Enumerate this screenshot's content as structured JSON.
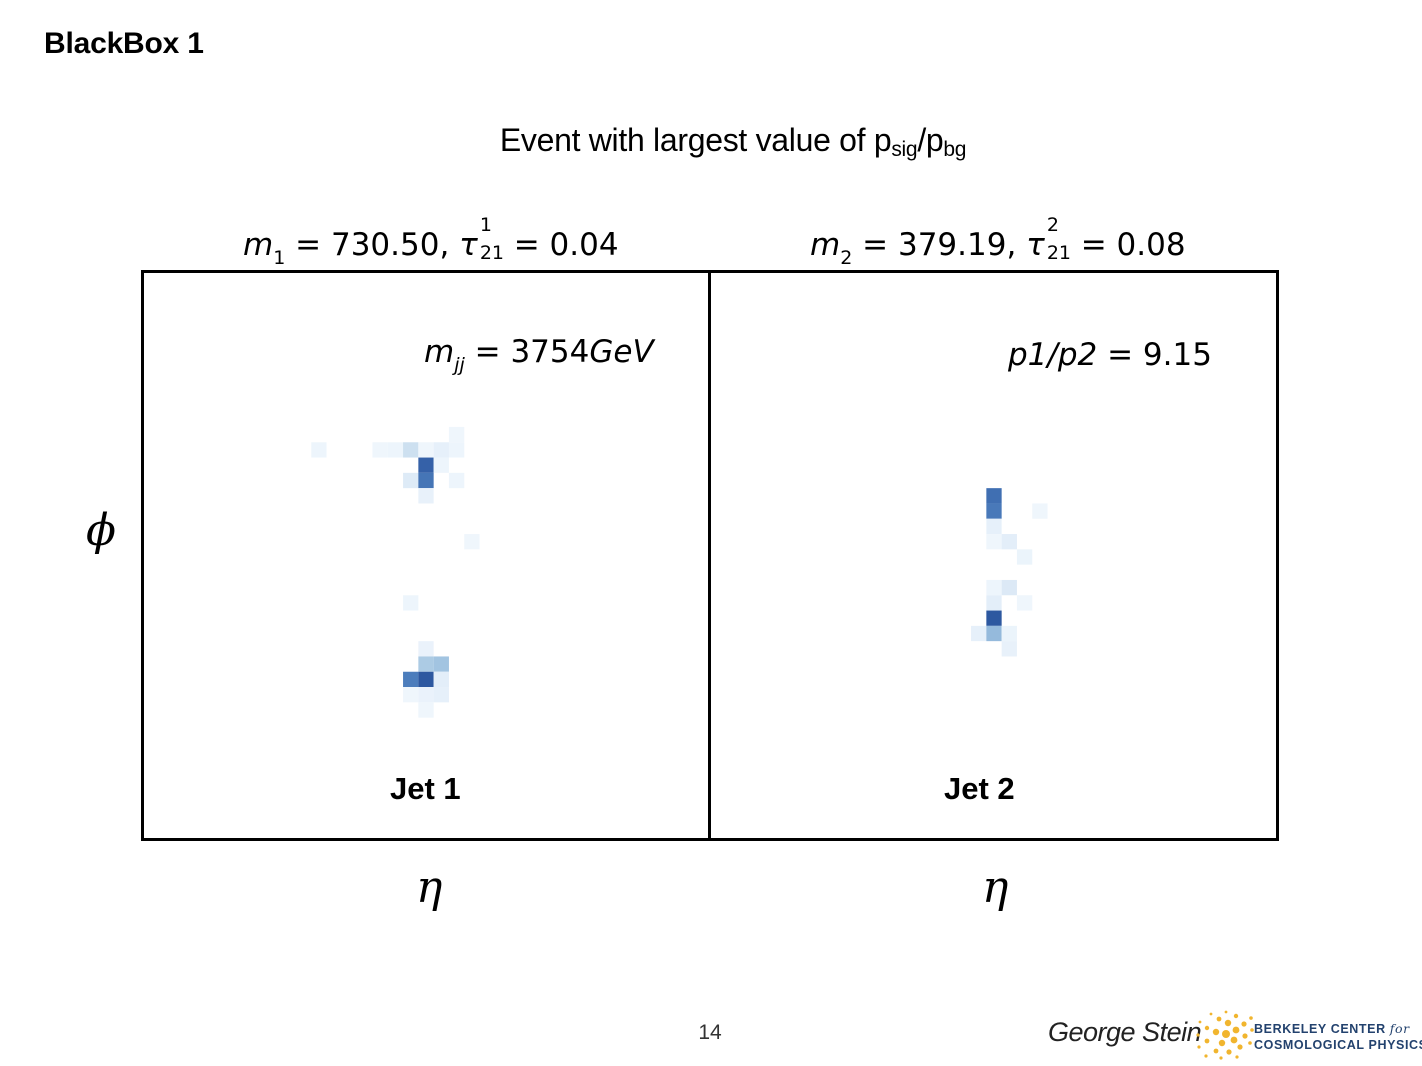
{
  "slide": {
    "title": "BlackBox 1",
    "subtitle_main": "Event with largest value of p",
    "subtitle_sub1": "sig",
    "subtitle_slash": "/p",
    "subtitle_sub2": "bg",
    "page_number": "14",
    "author": "George Stein",
    "org_line1": "BERKELEY CENTER",
    "org_line1_italic": "for",
    "org_line2": "COSMOLOGICAL PHYSICS"
  },
  "chart_data": {
    "type": "heatmap",
    "colormap": "Blues",
    "grid": false,
    "shared_annotations": {
      "mjj_label": "m",
      "mjj_sub": "jj",
      "mjj_value": " = 3754",
      "mjj_unit": "GeV",
      "ratio_label": "p1/p2",
      "ratio_value": " = 9.15"
    },
    "panels": [
      {
        "name": "Jet 1",
        "title_m": "m",
        "title_m_sub": "1",
        "title_m_value": " = 730.50, ",
        "title_tau": "τ",
        "title_tau_sup": "1",
        "title_tau_sub": "21",
        "title_tau_value": " = 0.04",
        "xlabel": "η",
        "ylabel": "ϕ",
        "cells": [
          {
            "col": -7,
            "row": -7,
            "v": 0.06
          },
          {
            "col": -3,
            "row": -7,
            "v": 0.05
          },
          {
            "col": -2,
            "row": -7,
            "v": 0.06
          },
          {
            "col": -1,
            "row": -7,
            "v": 0.22
          },
          {
            "col": 0,
            "row": -7,
            "v": 0.05
          },
          {
            "col": 1,
            "row": -7,
            "v": 0.1
          },
          {
            "col": 2,
            "row": -7,
            "v": 0.06
          },
          {
            "col": 2,
            "row": -8,
            "v": 0.05
          },
          {
            "col": 0,
            "row": -6,
            "v": 0.82
          },
          {
            "col": 1,
            "row": -6,
            "v": 0.06
          },
          {
            "col": -1,
            "row": -5,
            "v": 0.15
          },
          {
            "col": 0,
            "row": -5,
            "v": 0.72
          },
          {
            "col": 2,
            "row": -5,
            "v": 0.06
          },
          {
            "col": 0,
            "row": -4,
            "v": 0.09
          },
          {
            "col": 3,
            "row": -1,
            "v": 0.05
          },
          {
            "col": -1,
            "row": 3,
            "v": 0.06
          },
          {
            "col": 0,
            "row": 6,
            "v": 0.08
          },
          {
            "col": 0,
            "row": 7,
            "v": 0.35
          },
          {
            "col": 1,
            "row": 7,
            "v": 0.38
          },
          {
            "col": -1,
            "row": 8,
            "v": 0.68
          },
          {
            "col": 0,
            "row": 8,
            "v": 0.88
          },
          {
            "col": 1,
            "row": 8,
            "v": 0.12
          },
          {
            "col": -1,
            "row": 9,
            "v": 0.05
          },
          {
            "col": 0,
            "row": 9,
            "v": 0.08
          },
          {
            "col": 1,
            "row": 9,
            "v": 0.1
          },
          {
            "col": 0,
            "row": 10,
            "v": 0.05
          }
        ]
      },
      {
        "name": "Jet 2",
        "title_m": "m",
        "title_m_sub": "2",
        "title_m_value": " = 379.19, ",
        "title_tau": "τ",
        "title_tau_sup": "2",
        "title_tau_sub": "21",
        "title_tau_value": " = 0.08",
        "xlabel": "η",
        "ylabel": "",
        "cells": [
          {
            "col": 0,
            "row": -4,
            "v": 0.75
          },
          {
            "col": 0,
            "row": -3,
            "v": 0.7
          },
          {
            "col": 3,
            "row": -3,
            "v": 0.05
          },
          {
            "col": 0,
            "row": -2,
            "v": 0.1
          },
          {
            "col": 0,
            "row": -1,
            "v": 0.05
          },
          {
            "col": 1,
            "row": -1,
            "v": 0.12
          },
          {
            "col": 2,
            "row": 0,
            "v": 0.07
          },
          {
            "col": 0,
            "row": 2,
            "v": 0.06
          },
          {
            "col": 1,
            "row": 2,
            "v": 0.16
          },
          {
            "col": 0,
            "row": 3,
            "v": 0.12
          },
          {
            "col": 2,
            "row": 3,
            "v": 0.05
          },
          {
            "col": 0,
            "row": 4,
            "v": 0.88
          },
          {
            "col": -1,
            "row": 5,
            "v": 0.1
          },
          {
            "col": 0,
            "row": 5,
            "v": 0.42
          },
          {
            "col": 1,
            "row": 5,
            "v": 0.07
          },
          {
            "col": 1,
            "row": 6,
            "v": 0.09
          }
        ]
      }
    ]
  }
}
